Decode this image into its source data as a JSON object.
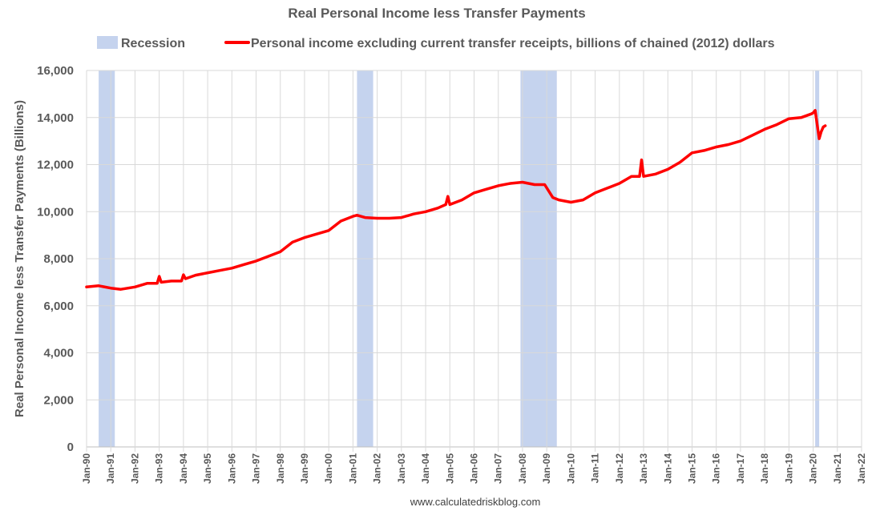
{
  "chart_data": {
    "type": "line",
    "title": "Real Personal Income less Transfer Payments",
    "ylabel": "Real Personal Income less Transfer Payments (Billions)",
    "xlabel": "",
    "source": "www.calculatedriskblog.com",
    "ylim": [
      0,
      16000
    ],
    "yticks": [
      0,
      2000,
      4000,
      6000,
      8000,
      10000,
      12000,
      14000,
      16000
    ],
    "ytick_labels": [
      "0",
      "2,000",
      "4,000",
      "6,000",
      "8,000",
      "10,000",
      "12,000",
      "14,000",
      "16,000"
    ],
    "xlim": [
      "1990-01",
      "2022-01"
    ],
    "xticks": [
      "1990-01",
      "1991-01",
      "1992-01",
      "1993-01",
      "1994-01",
      "1995-01",
      "1996-01",
      "1997-01",
      "1998-01",
      "1999-01",
      "2000-01",
      "2001-01",
      "2002-01",
      "2003-01",
      "2004-01",
      "2005-01",
      "2006-01",
      "2007-01",
      "2008-01",
      "2009-01",
      "2010-01",
      "2011-01",
      "2012-01",
      "2013-01",
      "2014-01",
      "2015-01",
      "2016-01",
      "2017-01",
      "2018-01",
      "2019-01",
      "2020-01",
      "2021-01",
      "2022-01"
    ],
    "xtick_labels": [
      "Jan-90",
      "Jan-91",
      "Jan-92",
      "Jan-93",
      "Jan-94",
      "Jan-95",
      "Jan-96",
      "Jan-97",
      "Jan-98",
      "Jan-99",
      "Jan-00",
      "Jan-01",
      "Jan-02",
      "Jan-03",
      "Jan-04",
      "Jan-05",
      "Jan-06",
      "Jan-07",
      "Jan-08",
      "Jan-09",
      "Jan-10",
      "Jan-11",
      "Jan-12",
      "Jan-13",
      "Jan-14",
      "Jan-15",
      "Jan-16",
      "Jan-17",
      "Jan-18",
      "Jan-19",
      "Jan-20",
      "Jan-21",
      "Jan-22"
    ],
    "grid": true,
    "legend_position": "top",
    "recessions": {
      "name": "Recession",
      "color": "#c5d3ee",
      "periods": [
        {
          "start": "1990-07",
          "end": "1991-03"
        },
        {
          "start": "2001-03",
          "end": "2001-11"
        },
        {
          "start": "2007-12",
          "end": "2009-06"
        },
        {
          "start": "2020-02",
          "end": "2020-04"
        }
      ]
    },
    "series": [
      {
        "name": "Personal income excluding current transfer receipts, billions of chained (2012) dollars",
        "color": "#ff0000",
        "x": [
          "1990-01",
          "1990-07",
          "1991-01",
          "1991-06",
          "1992-01",
          "1992-07",
          "1992-12",
          "1993-01",
          "1993-02",
          "1993-07",
          "1993-12",
          "1994-01",
          "1994-02",
          "1994-07",
          "1995-01",
          "1995-07",
          "1996-01",
          "1996-07",
          "1997-01",
          "1997-07",
          "1998-01",
          "1998-07",
          "1999-01",
          "1999-07",
          "2000-01",
          "2000-07",
          "2001-01",
          "2001-03",
          "2001-07",
          "2002-01",
          "2002-07",
          "2003-01",
          "2003-07",
          "2004-01",
          "2004-07",
          "2004-11",
          "2004-12",
          "2005-01",
          "2005-07",
          "2006-01",
          "2006-07",
          "2007-01",
          "2007-07",
          "2008-01",
          "2008-07",
          "2008-12",
          "2009-04",
          "2009-07",
          "2010-01",
          "2010-07",
          "2011-01",
          "2011-07",
          "2012-01",
          "2012-07",
          "2012-11",
          "2012-12",
          "2013-01",
          "2013-07",
          "2014-01",
          "2014-07",
          "2015-01",
          "2015-07",
          "2016-01",
          "2016-07",
          "2017-01",
          "2017-07",
          "2018-01",
          "2018-07",
          "2019-01",
          "2019-07",
          "2019-12",
          "2020-01",
          "2020-02",
          "2020-03",
          "2020-04",
          "2020-05",
          "2020-06",
          "2020-07"
        ],
        "values": [
          6800,
          6850,
          6750,
          6700,
          6800,
          6950,
          6950,
          7250,
          7000,
          7050,
          7050,
          7320,
          7150,
          7300,
          7400,
          7500,
          7600,
          7750,
          7900,
          8100,
          8300,
          8700,
          8900,
          9050,
          9200,
          9600,
          9800,
          9850,
          9750,
          9720,
          9720,
          9750,
          9900,
          10000,
          10150,
          10300,
          10650,
          10300,
          10500,
          10800,
          10950,
          11100,
          11200,
          11250,
          11150,
          11150,
          10600,
          10500,
          10400,
          10500,
          10800,
          11000,
          11200,
          11500,
          11500,
          12200,
          11500,
          11600,
          11800,
          12100,
          12500,
          12600,
          12750,
          12850,
          13000,
          13250,
          13500,
          13700,
          13950,
          14000,
          14150,
          14200,
          14300,
          13700,
          13100,
          13400,
          13600,
          13650
        ]
      }
    ]
  }
}
